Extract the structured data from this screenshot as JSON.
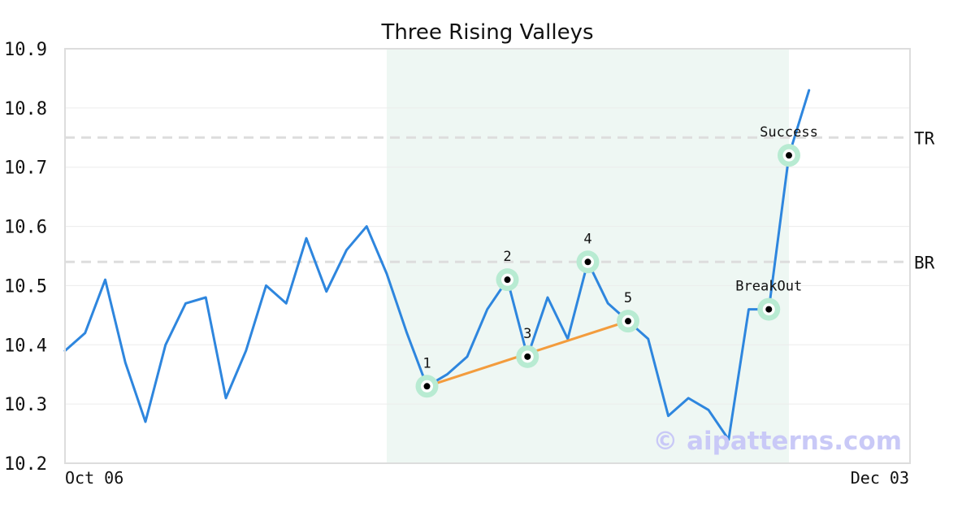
{
  "chart_data": {
    "type": "line",
    "title": "Three Rising Valleys",
    "x_tick_labels": [
      "Oct 06",
      "Dec 03"
    ],
    "ylim": [
      10.2,
      10.9
    ],
    "y_ticks": [
      "10.2",
      "10.3",
      "10.4",
      "10.5",
      "10.6",
      "10.7",
      "10.8",
      "10.9"
    ],
    "grid": true,
    "series": [
      {
        "values": [
          10.39,
          10.42,
          10.51,
          10.37,
          10.27,
          10.4,
          10.47,
          10.48,
          10.31,
          10.39,
          10.5,
          10.47,
          10.58,
          10.49,
          10.56,
          10.6,
          10.52,
          10.42,
          10.33,
          10.35,
          10.38,
          10.46,
          10.51,
          10.38,
          10.48,
          10.41,
          10.54,
          10.47,
          10.44,
          10.41,
          10.28,
          10.31,
          10.29,
          10.24,
          10.46,
          10.46,
          10.72,
          10.83
        ],
        "color": "#2e86de"
      }
    ],
    "pattern_region": {
      "start_index": 16,
      "end_index": 36
    },
    "valley_line": {
      "from_index": 18,
      "to_index": 28,
      "color": "#f39c3d"
    },
    "levels": [
      {
        "label": "TR",
        "value": 10.75
      },
      {
        "label": "BR",
        "value": 10.54
      }
    ],
    "points": [
      {
        "label": "1",
        "index": 18,
        "value": 10.33,
        "label_pos": "above"
      },
      {
        "label": "2",
        "index": 22,
        "value": 10.51,
        "label_pos": "above"
      },
      {
        "label": "3",
        "index": 23,
        "value": 10.38,
        "label_pos": "above"
      },
      {
        "label": "4",
        "index": 26,
        "value": 10.54,
        "label_pos": "above"
      },
      {
        "label": "5",
        "index": 28,
        "value": 10.44,
        "label_pos": "above"
      },
      {
        "label": "BreakOut",
        "index": 35,
        "value": 10.46,
        "label_pos": "above"
      },
      {
        "label": "Success",
        "index": 36,
        "value": 10.72,
        "label_pos": "above"
      }
    ],
    "watermark": "© aipatterns.com",
    "colors": {
      "line": "#2e86de",
      "region": "#eef7f3",
      "marker_halo": "#b8ebd2",
      "level_line": "#dddddd",
      "frame": "#dddddd"
    }
  }
}
